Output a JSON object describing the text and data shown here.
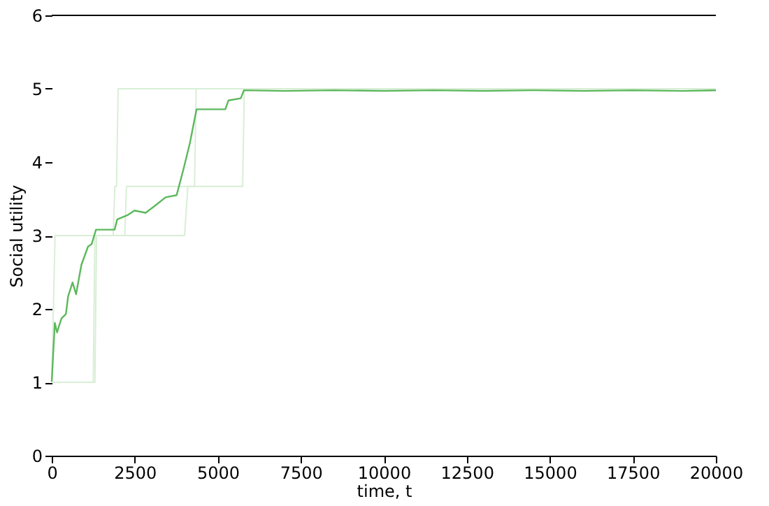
{
  "chart_data": {
    "type": "line",
    "xlabel": "time, t",
    "ylabel": "Social utility",
    "xlim": [
      0,
      20000
    ],
    "xticks": [
      0,
      2500,
      5000,
      7500,
      10000,
      12500,
      15000,
      17500,
      20000
    ],
    "ylim": [
      0,
      6
    ],
    "yticks": [
      0,
      1,
      2,
      3,
      4,
      5,
      6
    ],
    "grid": false,
    "line_style": "solid",
    "marker": "none",
    "series": [
      {
        "color": "#d9eed6",
        "x": [
          0,
          1250,
          1300,
          1850,
          1900,
          1950,
          2000,
          20000
        ],
        "values": [
          1,
          1,
          3,
          3,
          3.67,
          3.67,
          5,
          5
        ]
      },
      {
        "color": "#d9eed6",
        "x": [
          0,
          100,
          4000,
          4100,
          4300,
          4350,
          20000
        ],
        "values": [
          1,
          3,
          3,
          3.67,
          3.67,
          5,
          5
        ]
      },
      {
        "color": "#d9eed6",
        "x": [
          0,
          1300,
          1350,
          2200,
          2250,
          5750,
          5800,
          20000
        ],
        "values": [
          1,
          1,
          3,
          3,
          3.67,
          3.67,
          5,
          4.97
        ]
      },
      {
        "color": "#5cb85c",
        "x": [
          0,
          93,
          160,
          293,
          427,
          493,
          627,
          733,
          893,
          1093,
          1200,
          1333,
          1893,
          1973,
          2293,
          2493,
          2827,
          3093,
          3427,
          3760,
          3960,
          4160,
          4360,
          5227,
          5320,
          5693,
          5787,
          7000,
          8500,
          10000,
          11500,
          13000,
          14500,
          16000,
          17500,
          19000,
          20000
        ],
        "values": [
          1.01,
          1.81,
          1.68,
          1.87,
          1.93,
          2.17,
          2.36,
          2.2,
          2.6,
          2.85,
          2.88,
          3.08,
          3.08,
          3.22,
          3.28,
          3.34,
          3.31,
          3.4,
          3.52,
          3.55,
          3.89,
          4.26,
          4.72,
          4.72,
          4.84,
          4.87,
          4.98,
          4.97,
          4.98,
          4.97,
          4.98,
          4.97,
          4.98,
          4.97,
          4.98,
          4.97,
          4.98
        ]
      }
    ]
  }
}
